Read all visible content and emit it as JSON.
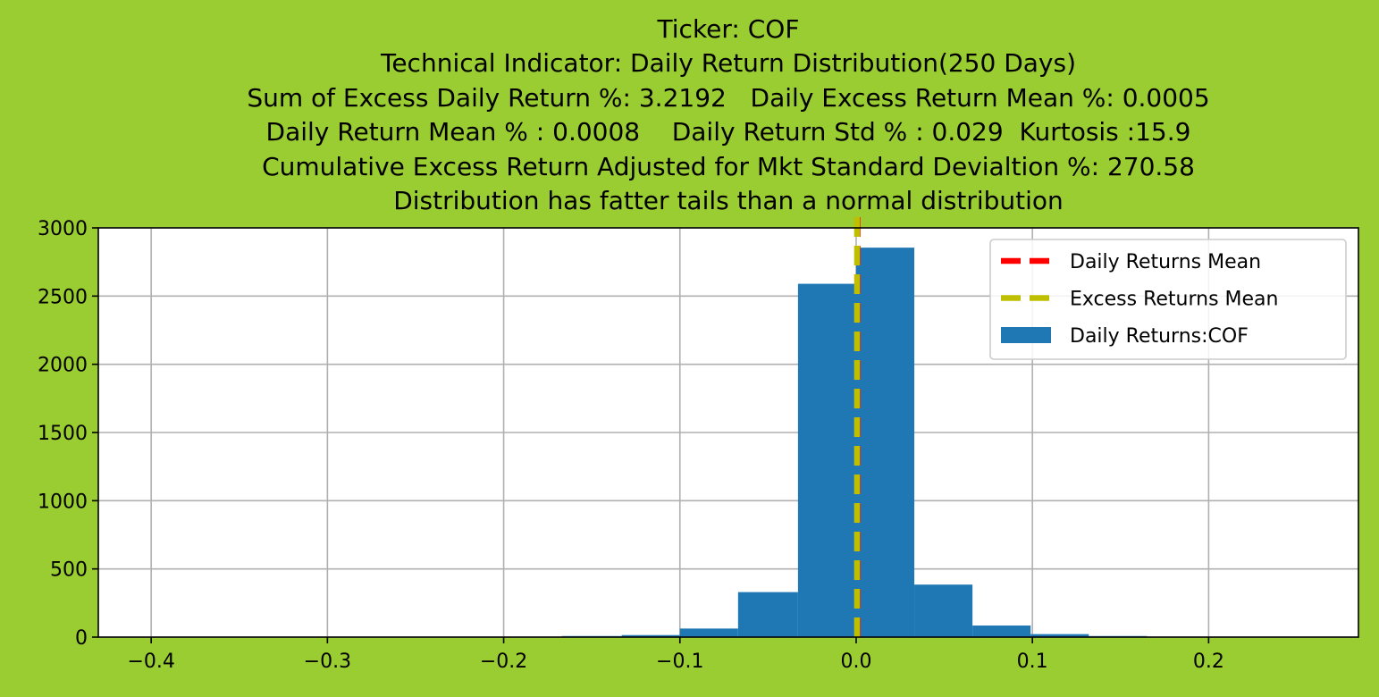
{
  "chart_data": {
    "type": "bar",
    "title_lines": [
      "Ticker: COF",
      "Technical Indicator: Daily Return Distribution(250 Days)",
      "Sum of Excess Daily Return %: 3.2192   Daily Excess Return Mean %: 0.0005",
      "Daily Return Mean % : 0.0008    Daily Return Std % : 0.029  Kurtosis :15.9",
      "Cumulative Excess Return Adjusted for Mkt Standard Devialtion %: 270.58",
      "Distribution has fatter tails than a normal distribution"
    ],
    "xlabel": "",
    "ylabel": "",
    "xlim": [
      -0.43,
      0.285
    ],
    "ylim": [
      0,
      3000
    ],
    "xticks": [
      -0.4,
      -0.3,
      -0.2,
      -0.1,
      0.0,
      0.1,
      0.2
    ],
    "xtick_labels": [
      "−0.4",
      "−0.3",
      "−0.2",
      "−0.1",
      "0.0",
      "0.1",
      "0.2"
    ],
    "yticks": [
      0,
      500,
      1000,
      1500,
      2000,
      2500,
      3000
    ],
    "ytick_labels": [
      "0",
      "500",
      "1000",
      "1500",
      "2000",
      "2500",
      "3000"
    ],
    "grid": true,
    "legend_position": "top-right",
    "legend": [
      {
        "label": "Daily Returns Mean",
        "kind": "dashed-line",
        "color": "#ff0000"
      },
      {
        "label": "Excess Returns Mean",
        "kind": "dashed-line",
        "color": "#bfbf00"
      },
      {
        "label": "Daily Returns:COF",
        "kind": "patch",
        "color": "#1f77b4"
      }
    ],
    "series": [
      {
        "name": "Daily Returns:COF",
        "kind": "histogram",
        "color": "#1f77b4",
        "bins": [
          {
            "x0": -0.398,
            "x1": -0.365,
            "count": 1
          },
          {
            "x0": -0.365,
            "x1": -0.332,
            "count": 0
          },
          {
            "x0": -0.332,
            "x1": -0.299,
            "count": 0
          },
          {
            "x0": -0.299,
            "x1": -0.266,
            "count": 1
          },
          {
            "x0": -0.266,
            "x1": -0.233,
            "count": 0
          },
          {
            "x0": -0.233,
            "x1": -0.2,
            "count": 1
          },
          {
            "x0": -0.2,
            "x1": -0.167,
            "count": 2
          },
          {
            "x0": -0.167,
            "x1": -0.133,
            "count": 8
          },
          {
            "x0": -0.133,
            "x1": -0.1,
            "count": 15
          },
          {
            "x0": -0.1,
            "x1": -0.067,
            "count": 63
          },
          {
            "x0": -0.067,
            "x1": -0.033,
            "count": 330
          },
          {
            "x0": -0.033,
            "x1": 0.0,
            "count": 2590
          },
          {
            "x0": 0.0,
            "x1": 0.033,
            "count": 2855
          },
          {
            "x0": 0.033,
            "x1": 0.066,
            "count": 385
          },
          {
            "x0": 0.066,
            "x1": 0.099,
            "count": 85
          },
          {
            "x0": 0.099,
            "x1": 0.132,
            "count": 22
          },
          {
            "x0": 0.132,
            "x1": 0.165,
            "count": 8
          },
          {
            "x0": 0.165,
            "x1": 0.198,
            "count": 3
          },
          {
            "x0": 0.198,
            "x1": 0.231,
            "count": 1
          },
          {
            "x0": 0.231,
            "x1": 0.264,
            "count": 1
          }
        ]
      },
      {
        "name": "Daily Returns Mean",
        "kind": "vline",
        "x": 0.0008,
        "color": "#ff0000"
      },
      {
        "name": "Excess Returns Mean",
        "kind": "vline",
        "x": 0.0005,
        "color": "#bfbf00"
      }
    ]
  }
}
